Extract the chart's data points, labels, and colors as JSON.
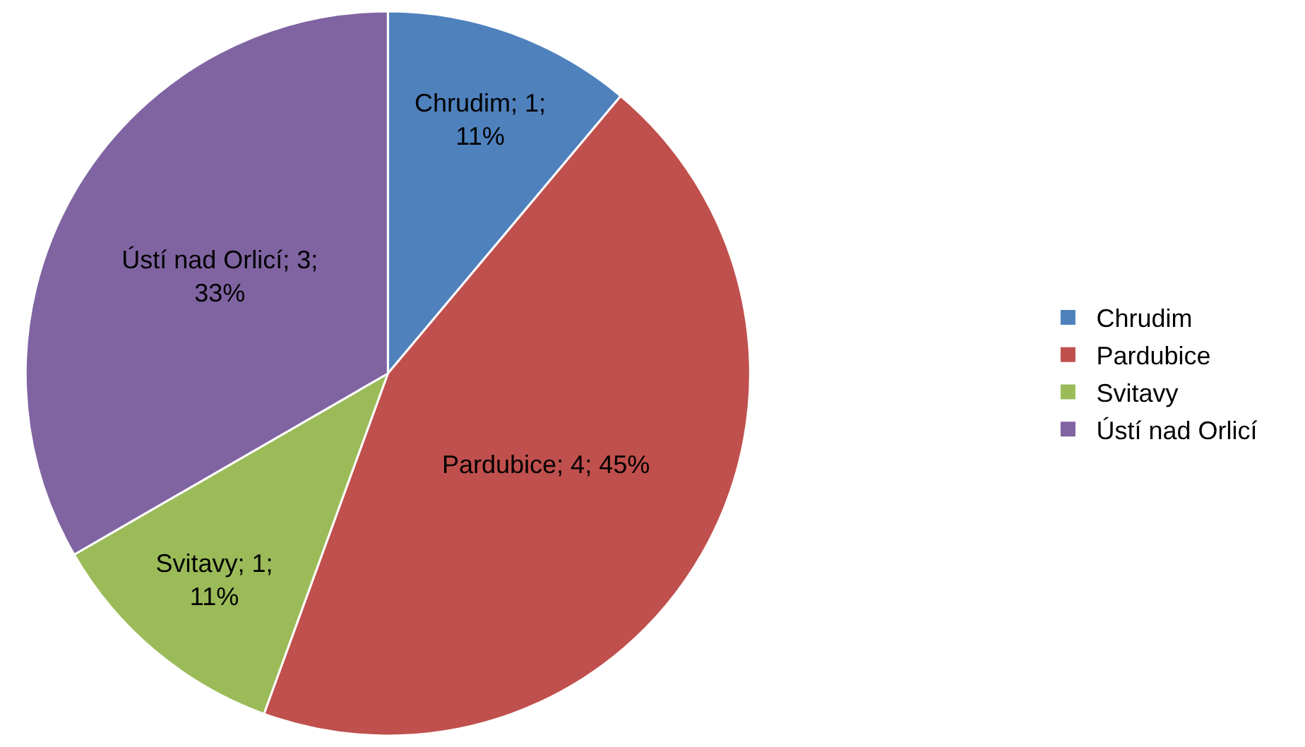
{
  "chart_data": {
    "type": "pie",
    "categories": [
      "Chrudim",
      "Pardubice",
      "Svitavy",
      "Ústí nad Orlicí"
    ],
    "values": [
      1,
      4,
      1,
      3
    ],
    "colors": [
      "#4f81bd",
      "#c0504d",
      "#9bbb59",
      "#8064a2"
    ],
    "value_labels": [
      "Chrudim; 1; 11%",
      "Pardubice; 4; 45%",
      "Svitavy; 1; 11%",
      "Ústí nad Orlicí; 3; 33%"
    ],
    "legend": "right"
  }
}
